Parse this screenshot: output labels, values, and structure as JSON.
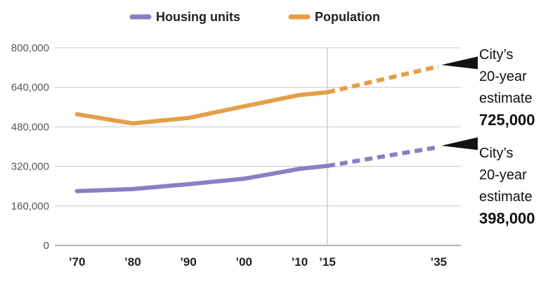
{
  "chart_data": {
    "type": "line",
    "x": [
      "’70",
      "’80",
      "’90",
      "’00",
      "’10",
      "’15",
      "’35"
    ],
    "x_years": [
      1970,
      1980,
      1990,
      2000,
      2010,
      2015,
      2035
    ],
    "ylim": [
      0,
      800000
    ],
    "y_ticks": [
      "800,000",
      "640,000",
      "480,000",
      "320,000",
      "160,000",
      "0"
    ],
    "y_tick_values": [
      800000,
      640000,
      480000,
      320000,
      160000,
      0
    ],
    "grid": true,
    "legend_position": "top",
    "projection_start_year": 2015,
    "series": [
      {
        "name": "Housing units",
        "color": "#8a7fc4",
        "values": [
          220000,
          228000,
          248000,
          270000,
          310000,
          322000,
          398000
        ],
        "annotation": {
          "lines": [
            "City’s",
            "20-year",
            "estimate"
          ],
          "value": "398,000"
        }
      },
      {
        "name": "Population",
        "color": "#e39f48",
        "values": [
          531000,
          494000,
          516000,
          563000,
          609000,
          620000,
          725000
        ],
        "annotation": {
          "lines": [
            "City’s",
            "20-year",
            "estimate"
          ],
          "value": "725,000"
        }
      }
    ]
  }
}
